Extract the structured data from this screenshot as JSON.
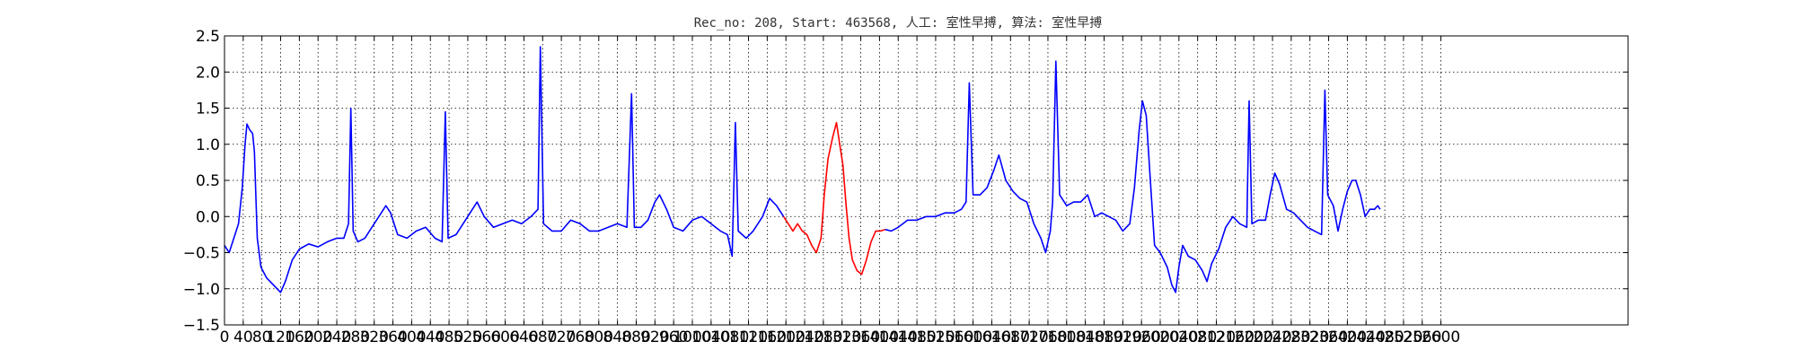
{
  "chart_data": {
    "type": "line",
    "title": "Rec_no: 208, Start: 463568, 人工: 室性早搏, 算法: 室性早搏",
    "xlabel": "",
    "ylabel": "",
    "xlim": [
      0,
      3000
    ],
    "ylim": [
      -1.5,
      2.5
    ],
    "grid": true,
    "x_tick_values": [
      0,
      40,
      80,
      120,
      160,
      200,
      240,
      280,
      320,
      360,
      400,
      440,
      480,
      520,
      560,
      600,
      640,
      680,
      720,
      760,
      800,
      840,
      880,
      920,
      960,
      1000,
      1040,
      1080,
      1120,
      1160,
      1200,
      1240,
      1280,
      1320,
      1360,
      1400,
      1440,
      1480,
      1520,
      1560,
      1600,
      1640,
      1680,
      1720,
      1760,
      1800,
      1840,
      1880,
      1920,
      1960,
      2000,
      2040,
      2080,
      2120,
      2160,
      2200,
      2240,
      2280,
      2320,
      2360,
      2400,
      2440,
      2480,
      2520,
      2560,
      2600
    ],
    "y_tick_values": [
      -1.5,
      -1.0,
      -0.5,
      0.0,
      0.5,
      1.0,
      1.5,
      2.0,
      2.5
    ],
    "y_tick_labels": [
      "−1.5",
      "−1.0",
      "−0.5",
      "0.0",
      "0.5",
      "1.0",
      "1.5",
      "2.0",
      "2.5"
    ],
    "series": [
      {
        "color": "#0000ff",
        "points": [
          [
            0,
            -0.4
          ],
          [
            10,
            -0.5
          ],
          [
            20,
            -0.3
          ],
          [
            30,
            -0.1
          ],
          [
            38,
            0.4
          ],
          [
            44,
            1.0
          ],
          [
            48,
            1.28
          ],
          [
            54,
            1.2
          ],
          [
            60,
            1.15
          ],
          [
            64,
            0.9
          ],
          [
            70,
            -0.3
          ],
          [
            78,
            -0.7
          ],
          [
            90,
            -0.85
          ],
          [
            105,
            -0.95
          ],
          [
            120,
            -1.05
          ],
          [
            130,
            -0.9
          ],
          [
            145,
            -0.6
          ],
          [
            160,
            -0.45
          ],
          [
            180,
            -0.38
          ],
          [
            200,
            -0.42
          ],
          [
            220,
            -0.35
          ],
          [
            240,
            -0.3
          ],
          [
            255,
            -0.3
          ],
          [
            265,
            -0.1
          ],
          [
            270,
            1.5
          ],
          [
            275,
            -0.2
          ],
          [
            285,
            -0.35
          ],
          [
            300,
            -0.3
          ],
          [
            315,
            -0.15
          ],
          [
            330,
            0.0
          ],
          [
            345,
            0.15
          ],
          [
            355,
            0.05
          ],
          [
            370,
            -0.25
          ],
          [
            390,
            -0.3
          ],
          [
            410,
            -0.2
          ],
          [
            430,
            -0.15
          ],
          [
            450,
            -0.3
          ],
          [
            465,
            -0.35
          ],
          [
            472,
            1.45
          ],
          [
            478,
            -0.3
          ],
          [
            495,
            -0.25
          ],
          [
            510,
            -0.1
          ],
          [
            525,
            0.05
          ],
          [
            540,
            0.2
          ],
          [
            555,
            0.0
          ],
          [
            575,
            -0.15
          ],
          [
            595,
            -0.1
          ],
          [
            615,
            -0.05
          ],
          [
            635,
            -0.1
          ],
          [
            655,
            0.0
          ],
          [
            670,
            0.1
          ],
          [
            675,
            2.35
          ],
          [
            682,
            -0.1
          ],
          [
            700,
            -0.2
          ],
          [
            720,
            -0.2
          ],
          [
            740,
            -0.05
          ],
          [
            760,
            -0.1
          ],
          [
            780,
            -0.2
          ],
          [
            800,
            -0.2
          ],
          [
            820,
            -0.15
          ],
          [
            840,
            -0.1
          ],
          [
            860,
            -0.15
          ],
          [
            870,
            1.7
          ],
          [
            876,
            -0.15
          ],
          [
            890,
            -0.15
          ],
          [
            905,
            -0.05
          ],
          [
            920,
            0.2
          ],
          [
            930,
            0.3
          ],
          [
            945,
            0.1
          ],
          [
            960,
            -0.15
          ],
          [
            980,
            -0.2
          ],
          [
            1000,
            -0.05
          ],
          [
            1020,
            0.0
          ],
          [
            1040,
            -0.1
          ],
          [
            1060,
            -0.2
          ],
          [
            1075,
            -0.25
          ],
          [
            1085,
            -0.55
          ],
          [
            1092,
            1.3
          ],
          [
            1098,
            -0.2
          ],
          [
            1115,
            -0.3
          ],
          [
            1130,
            -0.2
          ],
          [
            1150,
            0.0
          ],
          [
            1165,
            0.25
          ],
          [
            1180,
            0.15
          ],
          [
            1195,
            0.0
          ]
        ]
      },
      {
        "color": "#ff0000",
        "points": [
          [
            1195,
            0.0
          ],
          [
            1205,
            -0.1
          ],
          [
            1215,
            -0.2
          ],
          [
            1225,
            -0.1
          ],
          [
            1235,
            -0.2
          ],
          [
            1245,
            -0.25
          ],
          [
            1255,
            -0.4
          ],
          [
            1265,
            -0.5
          ],
          [
            1275,
            -0.3
          ],
          [
            1282,
            0.3
          ],
          [
            1290,
            0.8
          ],
          [
            1300,
            1.1
          ],
          [
            1308,
            1.3
          ],
          [
            1315,
            1.0
          ],
          [
            1322,
            0.7
          ],
          [
            1328,
            0.2
          ],
          [
            1335,
            -0.3
          ],
          [
            1342,
            -0.6
          ],
          [
            1352,
            -0.75
          ],
          [
            1362,
            -0.8
          ],
          [
            1372,
            -0.6
          ],
          [
            1382,
            -0.35
          ],
          [
            1392,
            -0.2
          ],
          [
            1402,
            -0.2
          ],
          [
            1412,
            -0.18
          ]
        ]
      },
      {
        "color": "#0000ff",
        "points": [
          [
            1412,
            -0.18
          ],
          [
            1425,
            -0.2
          ],
          [
            1440,
            -0.15
          ],
          [
            1460,
            -0.05
          ],
          [
            1480,
            -0.05
          ],
          [
            1500,
            0.0
          ],
          [
            1520,
            0.0
          ],
          [
            1540,
            0.05
          ],
          [
            1560,
            0.05
          ],
          [
            1575,
            0.1
          ],
          [
            1585,
            0.2
          ],
          [
            1592,
            1.85
          ],
          [
            1600,
            0.3
          ],
          [
            1615,
            0.3
          ],
          [
            1630,
            0.4
          ],
          [
            1645,
            0.65
          ],
          [
            1655,
            0.85
          ],
          [
            1670,
            0.5
          ],
          [
            1685,
            0.35
          ],
          [
            1700,
            0.25
          ],
          [
            1715,
            0.2
          ],
          [
            1730,
            -0.1
          ],
          [
            1745,
            -0.3
          ],
          [
            1755,
            -0.5
          ],
          [
            1765,
            -0.2
          ],
          [
            1770,
            0.2
          ],
          [
            1777,
            2.15
          ],
          [
            1785,
            0.3
          ],
          [
            1800,
            0.15
          ],
          [
            1815,
            0.2
          ],
          [
            1830,
            0.2
          ],
          [
            1845,
            0.3
          ],
          [
            1860,
            0.0
          ],
          [
            1875,
            0.05
          ],
          [
            1890,
            0.0
          ],
          [
            1905,
            -0.05
          ],
          [
            1920,
            -0.2
          ],
          [
            1935,
            -0.1
          ],
          [
            1945,
            0.4
          ],
          [
            1955,
            1.2
          ],
          [
            1962,
            1.6
          ],
          [
            1970,
            1.4
          ],
          [
            1978,
            0.6
          ],
          [
            1988,
            -0.4
          ],
          [
            2000,
            -0.5
          ],
          [
            2015,
            -0.7
          ],
          [
            2025,
            -0.95
          ],
          [
            2033,
            -1.05
          ],
          [
            2040,
            -0.7
          ],
          [
            2048,
            -0.4
          ],
          [
            2060,
            -0.55
          ],
          [
            2075,
            -0.6
          ],
          [
            2090,
            -0.75
          ],
          [
            2100,
            -0.9
          ],
          [
            2110,
            -0.65
          ],
          [
            2125,
            -0.45
          ],
          [
            2140,
            -0.15
          ],
          [
            2155,
            0.0
          ],
          [
            2170,
            -0.1
          ],
          [
            2185,
            -0.15
          ],
          [
            2190,
            1.6
          ],
          [
            2196,
            -0.1
          ],
          [
            2210,
            -0.05
          ],
          [
            2225,
            -0.05
          ],
          [
            2235,
            0.3
          ],
          [
            2245,
            0.6
          ],
          [
            2255,
            0.45
          ],
          [
            2270,
            0.1
          ],
          [
            2285,
            0.05
          ],
          [
            2300,
            -0.05
          ],
          [
            2315,
            -0.15
          ],
          [
            2330,
            -0.2
          ],
          [
            2345,
            -0.25
          ],
          [
            2352,
            1.75
          ],
          [
            2358,
            0.3
          ],
          [
            2370,
            0.15
          ],
          [
            2380,
            -0.2
          ],
          [
            2390,
            0.1
          ],
          [
            2400,
            0.35
          ],
          [
            2410,
            0.5
          ],
          [
            2418,
            0.5
          ],
          [
            2428,
            0.3
          ],
          [
            2438,
            0.0
          ],
          [
            2448,
            0.1
          ],
          [
            2458,
            0.1
          ],
          [
            2465,
            0.15
          ],
          [
            2470,
            0.1
          ]
        ]
      }
    ]
  }
}
